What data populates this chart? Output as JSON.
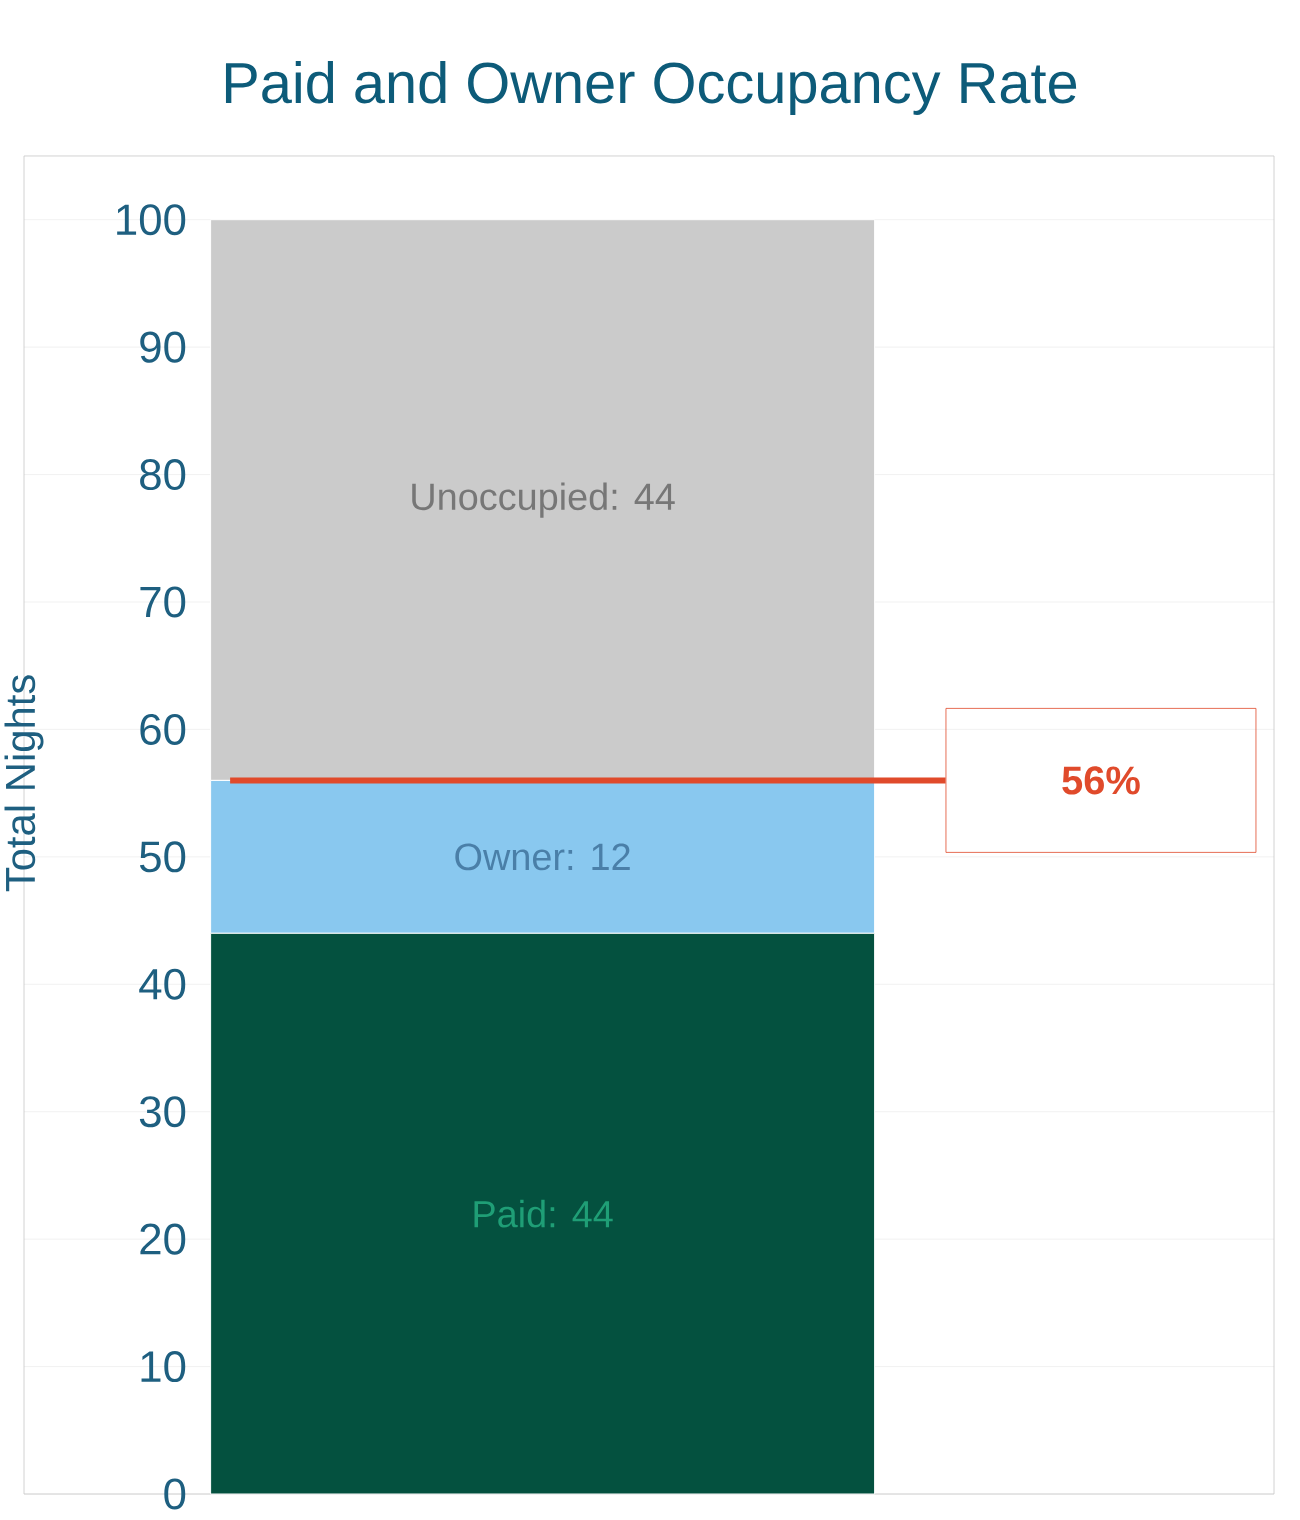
{
  "chart_data": {
    "type": "bar",
    "title": "Paid and Owner Occupancy Rate",
    "ylabel": "Total Nights",
    "categories": [
      null
    ],
    "stacked": true,
    "series": [
      {
        "color": "#04513f",
        "values": [
          44
        ],
        "value_labels": [
          "Paid: 44"
        ]
      },
      {
        "color": "#89c8ef",
        "values": [
          12
        ],
        "value_labels": [
          "Owner: 12"
        ]
      },
      {
        "color": "#cbcbcb",
        "values": [
          44
        ],
        "value_labels": [
          "Unoccupied: 44"
        ]
      }
    ],
    "ylim": [
      0,
      105
    ],
    "yticks": [
      0,
      10,
      20,
      30,
      40,
      50,
      60,
      70,
      80,
      90,
      100
    ],
    "grid": "y",
    "ref_lines": [
      {
        "axis": "y",
        "value": 56,
        "label": "56%",
        "color": "#e04a2b"
      }
    ]
  }
}
